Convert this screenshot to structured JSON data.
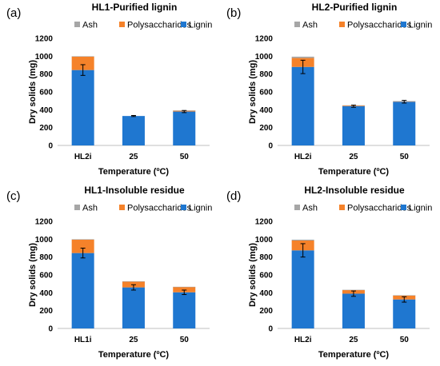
{
  "colors": {
    "Ash": "#a6a6a6",
    "Polysaccharides": "#f5822a",
    "Lignin": "#1f77d0"
  },
  "chart_data": [
    {
      "type": "bar",
      "stacked": true,
      "panel_label": "(a)",
      "title": "HL1-Purified lignin",
      "xlabel": "Temperature (ºC)",
      "ylabel": "Dry solids (mg)",
      "ylim": [
        0,
        1200
      ],
      "yticks": [
        0,
        200,
        400,
        600,
        800,
        1000,
        1200
      ],
      "categories": [
        "HL2i",
        "25",
        "50"
      ],
      "legend": [
        "Ash",
        "Polysaccharides",
        "Lignin"
      ],
      "series": [
        {
          "name": "Lignin",
          "values": [
            845,
            330,
            380
          ]
        },
        {
          "name": "Polysaccharides",
          "values": [
            150,
            0,
            10
          ]
        },
        {
          "name": "Ash",
          "values": [
            5,
            0,
            2
          ]
        }
      ],
      "errors": [
        60,
        6,
        12
      ]
    },
    {
      "type": "bar",
      "stacked": true,
      "panel_label": "(b)",
      "title": "HL2-Purified lignin",
      "xlabel": "Temperature (ºC)",
      "ylabel": "Dry solids (mg)",
      "ylim": [
        0,
        1200
      ],
      "yticks": [
        0,
        200,
        400,
        600,
        800,
        1000,
        1200
      ],
      "categories": [
        "HL2i",
        "25",
        "50"
      ],
      "legend": [
        "Ash",
        "Polysaccharides",
        "Lignin"
      ],
      "series": [
        {
          "name": "Lignin",
          "values": [
            880,
            440,
            490
          ]
        },
        {
          "name": "Polysaccharides",
          "values": [
            100,
            8,
            5
          ]
        },
        {
          "name": "Ash",
          "values": [
            15,
            2,
            2
          ]
        }
      ],
      "errors": [
        75,
        12,
        15
      ]
    },
    {
      "type": "bar",
      "stacked": true,
      "panel_label": "(c)",
      "title": "HL1-Insoluble residue",
      "xlabel": "Temperature (ºC)",
      "ylabel": "Dry solids (mg)",
      "ylim": [
        0,
        1200
      ],
      "yticks": [
        0,
        200,
        400,
        600,
        800,
        1000,
        1200
      ],
      "categories": [
        "HL1i",
        "25",
        "50"
      ],
      "legend": [
        "Ash",
        "Polysaccharides",
        "Lignin"
      ],
      "series": [
        {
          "name": "Lignin",
          "values": [
            845,
            460,
            405
          ]
        },
        {
          "name": "Polysaccharides",
          "values": [
            150,
            65,
            60
          ]
        },
        {
          "name": "Ash",
          "values": [
            5,
            3,
            2
          ]
        }
      ],
      "errors": [
        55,
        30,
        25
      ]
    },
    {
      "type": "bar",
      "stacked": true,
      "panel_label": "(d)",
      "title": "HL2-Insoluble residue",
      "xlabel": "Temperature (ºC)",
      "ylabel": "Dry solids (mg)",
      "ylim": [
        0,
        1200
      ],
      "yticks": [
        0,
        200,
        400,
        600,
        800,
        1000,
        1200
      ],
      "categories": [
        "HL2i",
        "25",
        "50"
      ],
      "legend": [
        "Ash",
        "Polysaccharides",
        "Lignin"
      ],
      "series": [
        {
          "name": "Lignin",
          "values": [
            875,
            390,
            325
          ]
        },
        {
          "name": "Polysaccharides",
          "values": [
            110,
            40,
            45
          ]
        },
        {
          "name": "Ash",
          "values": [
            10,
            3,
            2
          ]
        }
      ],
      "errors": [
        75,
        30,
        30
      ]
    }
  ]
}
